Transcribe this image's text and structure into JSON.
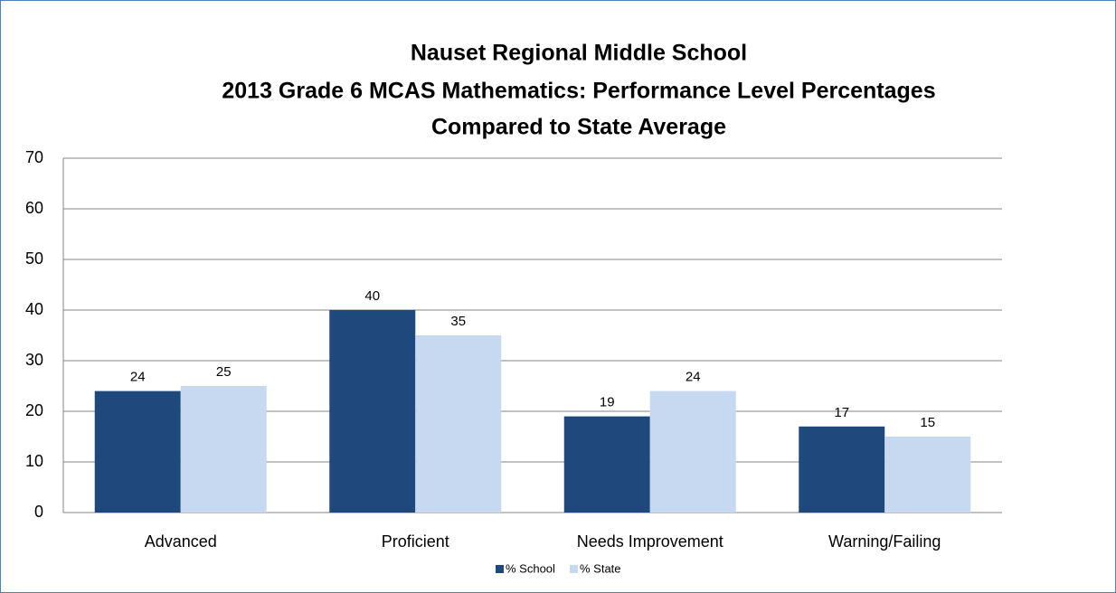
{
  "chart_data": {
    "type": "bar",
    "title": [
      "Nauset Regional Middle School",
      "2013 Grade 6 MCAS Mathematics:  Performance Level Percentages",
      "Compared to State Average"
    ],
    "categories": [
      "Advanced",
      "Proficient",
      "Needs Improvement",
      "Warning/Failing"
    ],
    "series": [
      {
        "name": "% School",
        "color": "#1f497d",
        "values": [
          24,
          40,
          19,
          17
        ]
      },
      {
        "name": "% State",
        "color": "#c6d9f1",
        "values": [
          25,
          35,
          24,
          15
        ]
      }
    ],
    "ylim": [
      0,
      70
    ],
    "yticks": [
      0,
      10,
      20,
      30,
      40,
      50,
      60,
      70
    ],
    "grid": true,
    "legend": "bottom"
  }
}
